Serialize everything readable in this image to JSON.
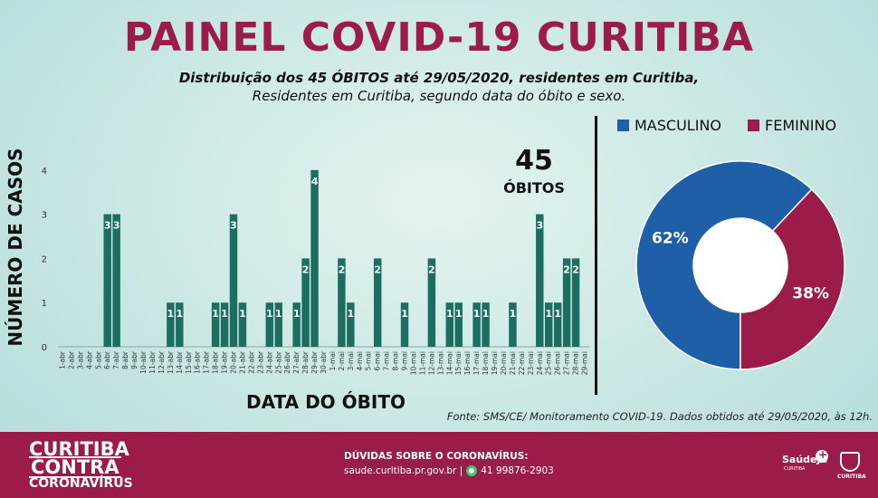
{
  "header": {
    "title": "PAINEL COVID-19 CURITIBA",
    "subtitle_1": "Distribuição dos 45 ÓBITOS até 29/05/2020, residentes em Curitiba,",
    "subtitle_2": "Residentes em Curitiba, segundo data do óbito e sexo."
  },
  "totals": {
    "number": "45",
    "label": "ÓBITOS"
  },
  "source": "Fonte: SMS/CE/ Monitoramento COVID-19. Dados obtidos até 29/05/2020, às 12h.",
  "footer": {
    "brand_line1": "CURITIBA",
    "brand_line2": "CONTRA",
    "brand_line3": "CORONAVÍRUS",
    "help_title": "DÚVIDAS SOBRE O CORONAVÍRUS:",
    "help_site": "saude.curitiba.pr.gov.br |",
    "help_phone": "41 99876-2903",
    "logo1_text": "SaúdeJá",
    "logo1_sub": "CURITIBA",
    "logo2_text": "CURITIBA",
    "icon": "whatsapp-icon"
  },
  "colors": {
    "bar": "#1c6e60",
    "masculino": "#1f5fa8",
    "feminino": "#9b1c4a",
    "title": "#9b1c4a"
  },
  "chart_data": [
    {
      "type": "bar",
      "xlabel": "DATA DO ÓBITO",
      "ylabel": "NÚMERO DE CASOS",
      "ylim": [
        0,
        4
      ],
      "yticks": [
        0,
        1,
        2,
        3,
        4
      ],
      "categories": [
        "1-abr",
        "2-abr",
        "3-abr",
        "4-abr",
        "5-abr",
        "6-abr",
        "7-abr",
        "8-abr",
        "9-abr",
        "10-abr",
        "11-abr",
        "12-abr",
        "13-abr",
        "14-abr",
        "15-abr",
        "16-abr",
        "17-abr",
        "18-abr",
        "19-abr",
        "20-abr",
        "21-abr",
        "22-abr",
        "23-abr",
        "24-abr",
        "25-abr",
        "26-abr",
        "27-abr",
        "28-abr",
        "29-abr",
        "30-abr",
        "1-mai",
        "2-mai",
        "3-mai",
        "4-mai",
        "5-mai",
        "6-mai",
        "7-mai",
        "8-mai",
        "9-mai",
        "10-mai",
        "11-mai",
        "12-mai",
        "13-mai",
        "14-mai",
        "15-mai",
        "16-mai",
        "17-mai",
        "18-mai",
        "19-mai",
        "20-mai",
        "21-mai",
        "22-mai",
        "23-mai",
        "24-mai",
        "25-mai",
        "26-mai",
        "27-mai",
        "28-mai",
        "29-mai"
      ],
      "values": [
        0,
        0,
        0,
        0,
        0,
        3,
        3,
        0,
        0,
        0,
        0,
        0,
        1,
        1,
        0,
        0,
        0,
        1,
        1,
        3,
        1,
        0,
        0,
        1,
        1,
        0,
        1,
        2,
        4,
        0,
        0,
        2,
        1,
        0,
        0,
        2,
        0,
        0,
        1,
        0,
        0,
        2,
        0,
        1,
        1,
        0,
        1,
        1,
        0,
        0,
        1,
        0,
        0,
        3,
        1,
        1,
        2,
        2,
        0
      ],
      "data_labels": "value shown inside bar when > 0"
    },
    {
      "type": "pie",
      "style": "donut",
      "slices": [
        {
          "name": "MASCULINO",
          "value": 62,
          "label": "62%"
        },
        {
          "name": "FEMININO",
          "value": 38,
          "label": "38%"
        }
      ],
      "legend": "top"
    }
  ]
}
